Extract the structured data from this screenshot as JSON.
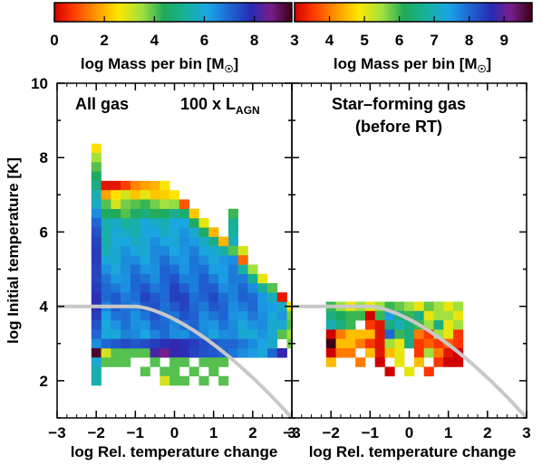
{
  "chart_data": [
    {
      "type": "heatmap",
      "panel": "left",
      "annotation": "All gas",
      "annotation2": "100 x L",
      "annotation2_sub": "AGN",
      "xlabel": "log Rel. temperature change",
      "ylabel": "log Initial temperature [K]",
      "xlim": [
        -3,
        3
      ],
      "ylim": [
        1,
        10
      ],
      "x_ticks": [
        "−3",
        "−2",
        "−1",
        "0",
        "1",
        "2",
        "3"
      ],
      "y_ticks": [
        "2",
        "4",
        "6",
        "8",
        "10"
      ],
      "colorbar": {
        "label": "log Mass per bin [M",
        "label_suffix": "]",
        "sun_symbol": "☉",
        "ticks": [
          "0",
          "2",
          "4",
          "6",
          "8"
        ],
        "range": [
          0,
          9.5
        ]
      },
      "reference_curve_color": "#c8c8c8",
      "bin_width": 0.25,
      "bin_height": 0.25,
      "bins": [
        [
          -2.0,
          8.25,
          2.5
        ],
        [
          -2.0,
          8.0,
          3.5
        ],
        [
          -2.0,
          7.75,
          4.0
        ],
        [
          -2.0,
          7.5,
          4.5
        ],
        [
          -2.0,
          7.25,
          5.0
        ],
        [
          -2.0,
          7.0,
          5.5
        ],
        [
          -2.0,
          6.75,
          5.8
        ],
        [
          -2.0,
          6.5,
          6.5
        ],
        [
          -2.0,
          6.25,
          7.0
        ],
        [
          -2.0,
          6.0,
          7.3
        ],
        [
          -2.0,
          5.75,
          7.5
        ],
        [
          -2.0,
          5.5,
          7.6
        ],
        [
          -2.0,
          5.25,
          7.6
        ],
        [
          -2.0,
          5.0,
          7.5
        ],
        [
          -2.0,
          4.75,
          7.5
        ],
        [
          -2.0,
          4.5,
          7.6
        ],
        [
          -2.0,
          4.25,
          7.8
        ],
        [
          -2.0,
          4.0,
          7.8
        ],
        [
          -2.0,
          3.75,
          7.6
        ],
        [
          -2.0,
          3.5,
          7.3
        ],
        [
          -2.0,
          3.25,
          7.0
        ],
        [
          -2.0,
          3.0,
          6.5
        ],
        [
          -2.0,
          2.75,
          9.3
        ],
        [
          -2.0,
          2.5,
          6.0
        ],
        [
          -2.0,
          2.25,
          5.5
        ],
        [
          -2.0,
          2.0,
          5.5
        ],
        [
          -1.75,
          7.25,
          0.3
        ],
        [
          -1.5,
          7.25,
          0.3
        ],
        [
          -1.25,
          7.25,
          0.8
        ],
        [
          -1.0,
          7.25,
          1.5
        ],
        [
          -0.75,
          7.25,
          1.8
        ],
        [
          -0.5,
          7.25,
          2.0
        ],
        [
          -0.25,
          7.25,
          2.6
        ],
        [
          -1.75,
          7.0,
          1.8
        ],
        [
          -1.5,
          7.0,
          2.5
        ],
        [
          -1.25,
          7.0,
          3.0
        ],
        [
          -1.0,
          7.0,
          2.2
        ],
        [
          -0.75,
          7.0,
          2.8
        ],
        [
          -0.5,
          7.0,
          2.2
        ],
        [
          -0.25,
          7.0,
          2.3
        ],
        [
          0.0,
          7.0,
          2.6
        ],
        [
          -1.75,
          6.75,
          4.0
        ],
        [
          -1.5,
          6.75,
          3.0
        ],
        [
          -1.25,
          6.75,
          3.8
        ],
        [
          -1.0,
          6.75,
          4.0
        ],
        [
          -0.75,
          6.75,
          4.2
        ],
        [
          -0.5,
          6.75,
          3.8
        ],
        [
          -0.25,
          6.75,
          3.5
        ],
        [
          0.0,
          6.75,
          3.6
        ],
        [
          0.25,
          6.75,
          1.0
        ],
        [
          0.5,
          6.5,
          2.2
        ],
        [
          0.75,
          6.25,
          2.8
        ],
        [
          1.0,
          6.0,
          2.0
        ],
        [
          1.25,
          5.75,
          2.0
        ],
        [
          1.5,
          5.5,
          4.0
        ],
        [
          1.75,
          5.5,
          3.0
        ],
        [
          1.75,
          5.25,
          1.2
        ],
        [
          2.0,
          5.0,
          3.5
        ],
        [
          2.25,
          4.75,
          2.8
        ],
        [
          2.5,
          4.5,
          4.0
        ],
        [
          2.75,
          4.25,
          0.3
        ],
        [
          3.0,
          4.0,
          2.5
        ],
        [
          3.0,
          3.75,
          3.8
        ],
        [
          2.75,
          3.25,
          4.0
        ],
        [
          3.0,
          3.5,
          4.0
        ],
        [
          3.0,
          3.25,
          3.5
        ],
        [
          3.0,
          3.0,
          3.8
        ],
        [
          -1.75,
          2.75,
          3.0
        ],
        [
          -1.5,
          2.75,
          4.0
        ],
        [
          -1.25,
          2.75,
          4.0
        ],
        [
          -1.0,
          2.75,
          4.0
        ],
        [
          -0.75,
          2.75,
          4.0
        ],
        [
          -0.5,
          2.75,
          8.2
        ],
        [
          -0.25,
          2.75,
          8.6
        ],
        [
          0.0,
          2.75,
          8.0
        ],
        [
          0.25,
          2.75,
          7.8
        ],
        [
          0.5,
          2.75,
          7.5
        ],
        [
          0.75,
          2.75,
          7.3
        ],
        [
          1.0,
          2.75,
          7.2
        ],
        [
          1.25,
          2.75,
          7.0
        ],
        [
          1.5,
          2.75,
          6.8
        ],
        [
          1.75,
          2.75,
          6.5
        ],
        [
          2.0,
          2.75,
          6.3
        ],
        [
          2.25,
          2.75,
          6.0
        ],
        [
          2.5,
          2.75,
          7.0
        ],
        [
          2.75,
          2.75,
          8.0
        ],
        [
          -1.75,
          3.0,
          7.0
        ],
        [
          -1.5,
          3.0,
          7.2
        ],
        [
          -1.25,
          3.0,
          7.4
        ],
        [
          -1.0,
          3.0,
          7.2
        ],
        [
          -0.75,
          3.0,
          7.4
        ],
        [
          -0.5,
          3.0,
          7.6
        ],
        [
          -0.25,
          3.0,
          7.8
        ],
        [
          0.0,
          3.0,
          8.0
        ],
        [
          0.25,
          3.0,
          7.8
        ],
        [
          0.5,
          3.0,
          7.6
        ],
        [
          0.75,
          3.0,
          7.4
        ],
        [
          1.0,
          3.0,
          7.2
        ],
        [
          1.25,
          3.0,
          7.0
        ],
        [
          1.5,
          3.0,
          7.0
        ],
        [
          1.75,
          3.0,
          6.8
        ],
        [
          2.0,
          3.0,
          6.5
        ],
        [
          2.25,
          3.0,
          6.2
        ],
        [
          2.5,
          3.0,
          5.8
        ],
        [
          -1.75,
          2.5,
          4.0
        ],
        [
          -1.5,
          2.5,
          4.0
        ],
        [
          -1.25,
          2.5,
          4.0
        ],
        [
          -0.5,
          2.5,
          4.0
        ],
        [
          0.0,
          2.5,
          4.0
        ],
        [
          0.25,
          2.5,
          4.0
        ],
        [
          0.75,
          2.5,
          4.0
        ],
        [
          1.0,
          2.5,
          4.0
        ],
        [
          1.25,
          2.5,
          4.0
        ],
        [
          -0.75,
          2.25,
          4.0
        ],
        [
          -0.25,
          2.25,
          4.0
        ],
        [
          0.0,
          2.25,
          4.0
        ],
        [
          0.5,
          2.25,
          4.0
        ],
        [
          1.0,
          2.25,
          4.0
        ],
        [
          -0.25,
          2.0,
          3.0
        ],
        [
          0.0,
          2.0,
          4.0
        ],
        [
          0.25,
          2.0,
          4.0
        ],
        [
          0.75,
          2.0,
          4.0
        ],
        [
          1.25,
          2.0,
          4.0
        ]
      ],
      "region_fill": [
        {
          "x": [
            -1.75,
            2.75
          ],
          "y": [
            3.25,
            6.5
          ],
          "top_edge": [
            [
              -1.75,
              6.5
            ],
            [
              0.25,
              6.5
            ],
            [
              0.5,
              6.25
            ],
            [
              0.75,
              6.0
            ],
            [
              1.0,
              5.75
            ],
            [
              1.25,
              5.5
            ],
            [
              1.75,
              5.0
            ],
            [
              2.0,
              4.75
            ],
            [
              2.25,
              4.5
            ],
            [
              2.5,
              4.25
            ],
            [
              2.75,
              4.0
            ]
          ]
        }
      ]
    },
    {
      "type": "heatmap",
      "panel": "right",
      "annotation": "Star–forming gas",
      "annotation2": "(before RT)",
      "xlabel": "log Rel. temperature change",
      "xlim": [
        -3,
        3
      ],
      "ylim": [
        1,
        10
      ],
      "x_ticks": [
        "−3",
        "−2",
        "−1",
        "0",
        "1",
        "2",
        "3"
      ],
      "colorbar": {
        "label": "log Mass per bin [M",
        "label_suffix": "]",
        "sun_symbol": "☉",
        "ticks": [
          "3",
          "4",
          "5",
          "6",
          "7",
          "8",
          "9"
        ],
        "range": [
          3,
          9.8
        ]
      },
      "bin_width": 0.25,
      "bin_height": 0.25,
      "bins": [
        [
          -2.0,
          4.0,
          6.0
        ],
        [
          -1.75,
          4.0,
          5.5
        ],
        [
          -1.5,
          4.0,
          5.0
        ],
        [
          -1.25,
          4.0,
          5.5
        ],
        [
          -1.0,
          4.0,
          5.0
        ],
        [
          -0.75,
          4.0,
          5.5
        ],
        [
          -0.5,
          4.0,
          6.0
        ],
        [
          -0.25,
          4.0,
          5.8
        ],
        [
          0.0,
          4.0,
          5.5
        ],
        [
          0.25,
          4.0,
          5.0
        ],
        [
          0.5,
          4.0,
          5.8
        ],
        [
          0.75,
          4.0,
          5.5
        ],
        [
          1.0,
          4.0,
          5.0
        ],
        [
          1.25,
          4.0,
          5.5
        ],
        [
          -2.0,
          3.75,
          6.5
        ],
        [
          -1.75,
          3.75,
          6.2
        ],
        [
          -1.5,
          3.75,
          6.0
        ],
        [
          -1.25,
          3.75,
          6.0
        ],
        [
          -1.0,
          3.75,
          3.0
        ],
        [
          -0.75,
          3.75,
          6.0
        ],
        [
          -0.5,
          3.75,
          7.5
        ],
        [
          -0.25,
          3.75,
          6.5
        ],
        [
          0.0,
          3.75,
          6.0
        ],
        [
          0.25,
          3.75,
          6.5
        ],
        [
          0.5,
          3.75,
          5.0
        ],
        [
          0.75,
          3.75,
          5.5
        ],
        [
          1.0,
          3.75,
          5.5
        ],
        [
          1.25,
          3.75,
          5.0
        ],
        [
          -2.0,
          3.5,
          7.0
        ],
        [
          -1.75,
          3.5,
          6.5
        ],
        [
          -1.5,
          3.5,
          6.0
        ],
        [
          -1.0,
          3.5,
          3.5
        ],
        [
          -0.75,
          3.5,
          3.2
        ],
        [
          -0.5,
          3.5,
          6.5
        ],
        [
          -0.25,
          3.5,
          7.0
        ],
        [
          0.0,
          3.5,
          6.5
        ],
        [
          0.25,
          3.5,
          6.0
        ],
        [
          0.5,
          3.5,
          5.5
        ],
        [
          0.75,
          3.5,
          6.5
        ],
        [
          1.0,
          3.5,
          5.0
        ],
        [
          1.25,
          3.5,
          5.5
        ],
        [
          -2.0,
          3.25,
          3.0
        ],
        [
          -1.75,
          3.25,
          4.0
        ],
        [
          -1.5,
          3.25,
          4.5
        ],
        [
          -1.25,
          3.25,
          4.5
        ],
        [
          -1.0,
          3.25,
          4.5
        ],
        [
          -0.75,
          3.25,
          3.2
        ],
        [
          -0.5,
          3.25,
          8.0
        ],
        [
          -0.25,
          3.25,
          6.0
        ],
        [
          0.0,
          3.25,
          6.5
        ],
        [
          0.25,
          3.25,
          4.0
        ],
        [
          0.5,
          3.25,
          3.5
        ],
        [
          0.75,
          3.25,
          5.5
        ],
        [
          1.0,
          3.25,
          5.0
        ],
        [
          1.25,
          3.25,
          3.5
        ],
        [
          -2.0,
          3.0,
          9.8
        ],
        [
          -1.75,
          3.0,
          4.5
        ],
        [
          -1.5,
          3.0,
          4.5
        ],
        [
          -1.25,
          3.0,
          4.0
        ],
        [
          -1.0,
          3.0,
          3.5
        ],
        [
          -0.75,
          3.0,
          3.2
        ],
        [
          -0.5,
          3.0,
          5.5
        ],
        [
          -0.25,
          3.0,
          5.0
        ],
        [
          0.0,
          3.0,
          6.5
        ],
        [
          0.25,
          3.0,
          3.5
        ],
        [
          0.5,
          3.0,
          3.8
        ],
        [
          0.75,
          3.0,
          3.5
        ],
        [
          1.0,
          3.0,
          3.8
        ],
        [
          1.25,
          3.0,
          3.5
        ],
        [
          -2.0,
          2.75,
          3.0
        ],
        [
          -1.75,
          2.75,
          4.0
        ],
        [
          -1.5,
          2.75,
          4.0
        ],
        [
          -1.0,
          2.75,
          4.5
        ],
        [
          -0.75,
          2.75,
          3.2
        ],
        [
          -0.5,
          2.75,
          4.5
        ],
        [
          -0.25,
          2.75,
          5.0
        ],
        [
          0.25,
          2.75,
          3.5
        ],
        [
          0.5,
          2.75,
          5.5
        ],
        [
          0.75,
          2.75,
          4.0
        ],
        [
          1.0,
          2.75,
          3.2
        ],
        [
          1.25,
          2.75,
          3.0
        ],
        [
          -2.0,
          2.5,
          4.5
        ],
        [
          -1.25,
          2.5,
          4.0
        ],
        [
          -0.75,
          2.5,
          3.0
        ],
        [
          -0.25,
          2.5,
          5.0
        ],
        [
          0.25,
          2.5,
          4.5
        ],
        [
          0.75,
          2.5,
          3.5
        ],
        [
          1.0,
          2.5,
          3.0
        ],
        [
          1.25,
          2.5,
          3.0
        ],
        [
          -0.5,
          2.25,
          3.0
        ],
        [
          0.0,
          2.25,
          5.0
        ],
        [
          0.5,
          2.25,
          3.5
        ]
      ]
    }
  ]
}
